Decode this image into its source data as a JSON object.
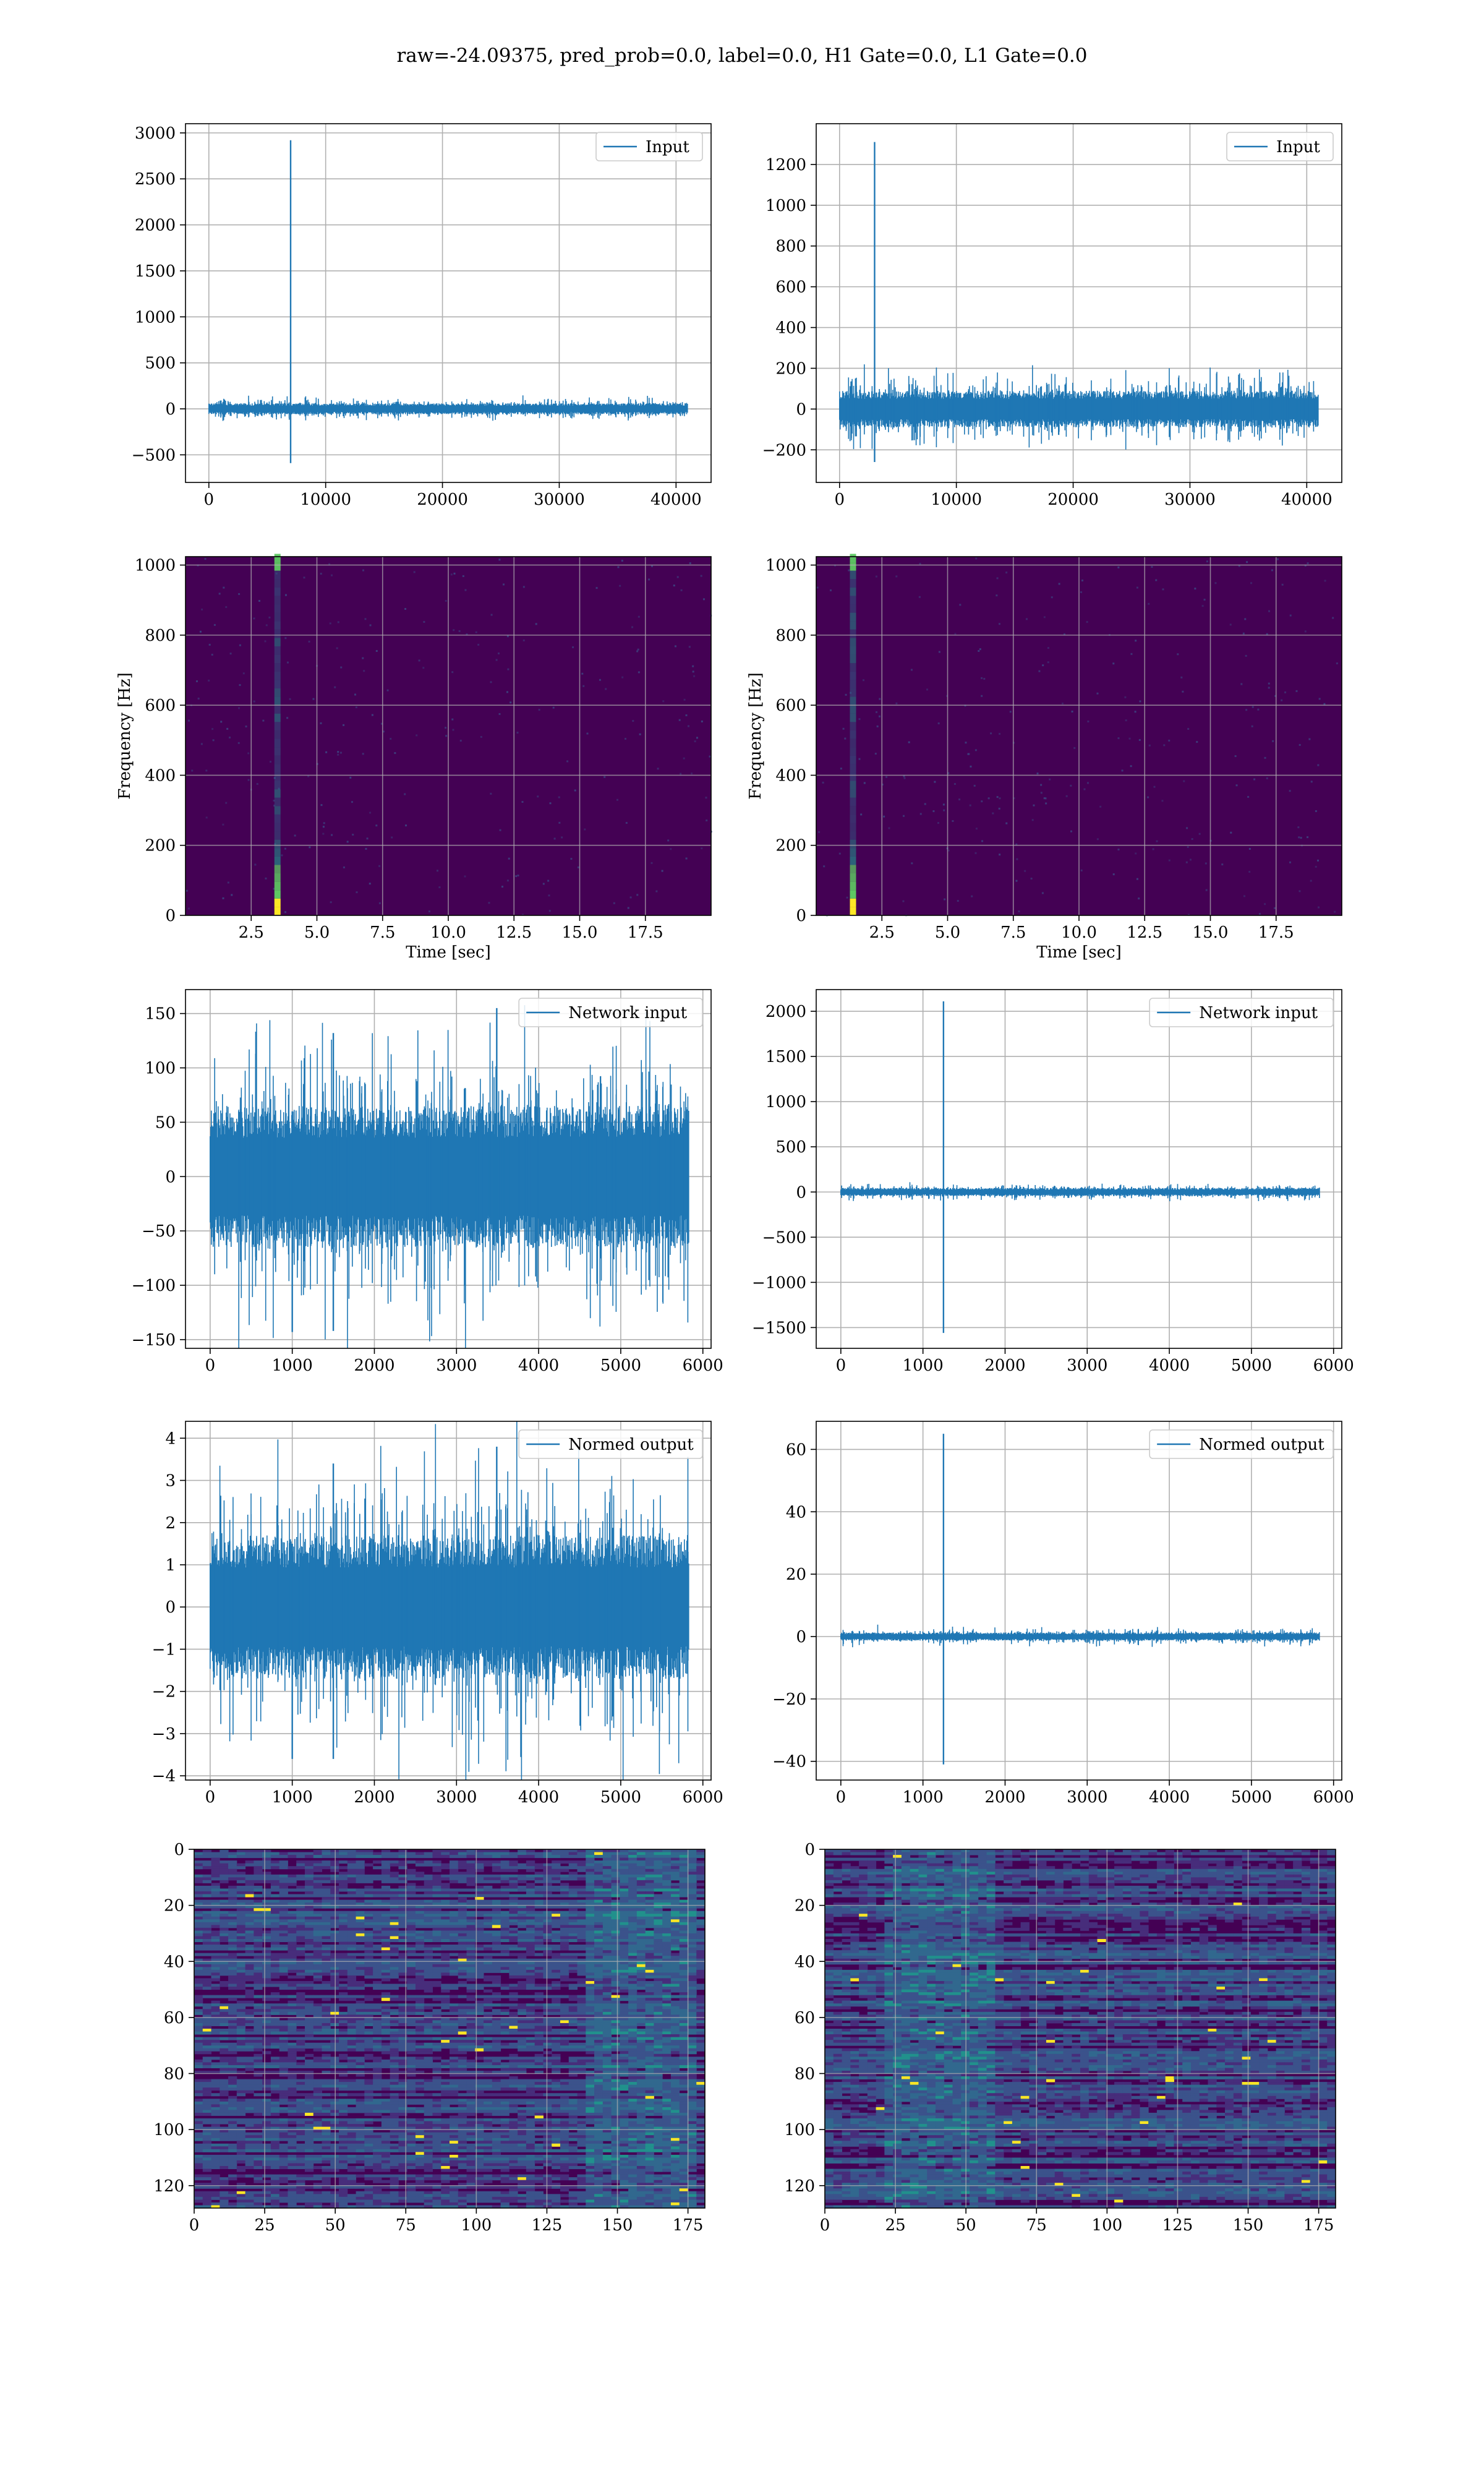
{
  "suptitle": "raw=-24.09375, pred_prob=0.0, label=0.0, H1 Gate=0.0, L1 Gate=0.0",
  "colors": {
    "line": "#1f77b4",
    "grid": "#b0b0b0",
    "viridis_low": "#440154",
    "viridis_mid": "#21918c",
    "viridis_high": "#fde725"
  },
  "chart_data": [
    {
      "type": "line",
      "id": "row1-left",
      "legend": "Input",
      "legend_position": "top-right",
      "xlim": [
        -2000,
        43000
      ],
      "ylim": [
        -800,
        3100
      ],
      "xticks": [
        0,
        10000,
        20000,
        30000,
        40000
      ],
      "yticks": [
        -500,
        0,
        500,
        1000,
        1500,
        2000,
        2500,
        3000
      ],
      "xlabel": "",
      "ylabel": "",
      "x_range": [
        0,
        41000
      ],
      "noise_amplitude": 60,
      "spikes": [
        {
          "x": 7000,
          "max": 2920,
          "min": -590
        }
      ],
      "grid": true
    },
    {
      "type": "line",
      "id": "row1-right",
      "legend": "Input",
      "legend_position": "top-right",
      "xlim": [
        -2000,
        43000
      ],
      "ylim": [
        -360,
        1400
      ],
      "xticks": [
        0,
        10000,
        20000,
        30000,
        40000
      ],
      "yticks": [
        -200,
        0,
        200,
        400,
        600,
        800,
        1000,
        1200
      ],
      "xlabel": "",
      "ylabel": "",
      "x_range": [
        0,
        41000
      ],
      "noise_amplitude": 90,
      "spikes": [
        {
          "x": 3000,
          "max": 1310,
          "min": -260
        }
      ],
      "grid": true
    },
    {
      "type": "heatmap",
      "id": "row2-left",
      "xlim": [
        0,
        20
      ],
      "ylim": [
        0,
        1024
      ],
      "xticks": [
        2.5,
        5.0,
        7.5,
        10.0,
        12.5,
        15.0,
        17.5
      ],
      "xticklabels": [
        "2.5",
        "5.0",
        "7.5",
        "10.0",
        "12.5",
        "15.0",
        "17.5"
      ],
      "yticks": [
        0,
        200,
        400,
        600,
        800,
        1000
      ],
      "xlabel": "Time [sec]",
      "ylabel": "Frequency [Hz]",
      "hotspot_time": 3.5,
      "grid": true
    },
    {
      "type": "heatmap",
      "id": "row2-right",
      "xlim": [
        0,
        20
      ],
      "ylim": [
        0,
        1024
      ],
      "xticks": [
        2.5,
        5.0,
        7.5,
        10.0,
        12.5,
        15.0,
        17.5
      ],
      "xticklabels": [
        "2.5",
        "5.0",
        "7.5",
        "10.0",
        "12.5",
        "15.0",
        "17.5"
      ],
      "yticks": [
        0,
        200,
        400,
        600,
        800,
        1000
      ],
      "xlabel": "Time [sec]",
      "ylabel": "Frequency [Hz]",
      "hotspot_time": 1.4,
      "grid": true
    },
    {
      "type": "line",
      "id": "row3-left",
      "legend": "Network input",
      "legend_position": "top-right",
      "xlim": [
        -300,
        6100
      ],
      "ylim": [
        -158,
        172
      ],
      "xticks": [
        0,
        1000,
        2000,
        3000,
        4000,
        5000,
        6000
      ],
      "yticks": [
        -150,
        -100,
        -50,
        0,
        50,
        100,
        150
      ],
      "xlabel": "",
      "ylabel": "",
      "x_range": [
        0,
        5830
      ],
      "noise_amplitude": 65,
      "spikes": [
        {
          "x": 3490,
          "max": 155,
          "min": -40
        },
        {
          "x": 1000,
          "max": 60,
          "min": -143
        },
        {
          "x": 1500,
          "max": 132,
          "min": -142
        }
      ],
      "grid": true
    },
    {
      "type": "line",
      "id": "row3-right",
      "legend": "Network input",
      "legend_position": "top-right",
      "xlim": [
        -300,
        6100
      ],
      "ylim": [
        -1730,
        2240
      ],
      "xticks": [
        0,
        1000,
        2000,
        3000,
        4000,
        5000,
        6000
      ],
      "yticks": [
        -1500,
        -1000,
        -500,
        0,
        500,
        1000,
        1500,
        2000
      ],
      "xlabel": "",
      "ylabel": "",
      "x_range": [
        0,
        5830
      ],
      "noise_amplitude": 45,
      "spikes": [
        {
          "x": 1250,
          "max": 2110,
          "min": -1560
        }
      ],
      "grid": true
    },
    {
      "type": "line",
      "id": "row4-left",
      "legend": "Normed output",
      "legend_position": "top-right",
      "xlim": [
        -300,
        6100
      ],
      "ylim": [
        -4.1,
        4.4
      ],
      "xticks": [
        0,
        1000,
        2000,
        3000,
        4000,
        5000,
        6000
      ],
      "yticks": [
        -4,
        -3,
        -2,
        -1,
        0,
        1,
        2,
        3,
        4
      ],
      "xlabel": "",
      "ylabel": "",
      "x_range": [
        0,
        5830
      ],
      "noise_amplitude": 1.7,
      "spikes": [
        {
          "x": 3490,
          "max": 3.8,
          "min": -1.0
        },
        {
          "x": 1000,
          "max": 1.5,
          "min": -3.6
        },
        {
          "x": 1500,
          "max": 3.4,
          "min": -3.6
        }
      ],
      "grid": true
    },
    {
      "type": "line",
      "id": "row4-right",
      "legend": "Normed output",
      "legend_position": "top-right",
      "xlim": [
        -300,
        6100
      ],
      "ylim": [
        -46,
        69
      ],
      "xticks": [
        0,
        1000,
        2000,
        3000,
        4000,
        5000,
        6000
      ],
      "yticks": [
        -40,
        -20,
        0,
        20,
        40,
        60
      ],
      "xlabel": "",
      "ylabel": "",
      "x_range": [
        0,
        5830
      ],
      "noise_amplitude": 1.3,
      "spikes": [
        {
          "x": 1250,
          "max": 65,
          "min": -41
        }
      ],
      "grid": true
    },
    {
      "type": "heatmap",
      "id": "row5-left",
      "xlim": [
        0,
        181
      ],
      "ylim": [
        128,
        0
      ],
      "xticks": [
        0,
        25,
        50,
        75,
        100,
        125,
        150,
        175
      ],
      "yticks": [
        0,
        20,
        40,
        60,
        80,
        100,
        120
      ],
      "xlabel": "",
      "ylabel": "",
      "bright_columns": [
        140,
        178
      ],
      "grid": true
    },
    {
      "type": "heatmap",
      "id": "row5-right",
      "xlim": [
        0,
        181
      ],
      "ylim": [
        128,
        0
      ],
      "xticks": [
        0,
        25,
        50,
        75,
        100,
        125,
        150,
        175
      ],
      "yticks": [
        0,
        20,
        40,
        60,
        80,
        100,
        120
      ],
      "xlabel": "",
      "ylabel": "",
      "bright_columns": [
        20,
        60
      ],
      "grid": true
    }
  ]
}
